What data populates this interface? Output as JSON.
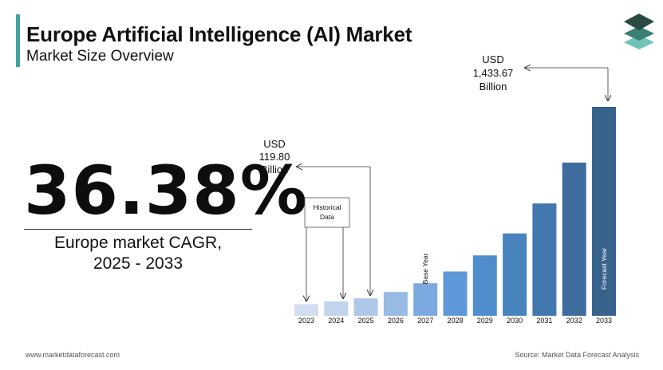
{
  "header": {
    "title": "Europe Artificial Intelligence (AI) Market",
    "subtitle": "Market Size Overview"
  },
  "colors": {
    "accent": "#3fa59b",
    "logo_dark": "#2c4a44",
    "logo_mid": "#3a7f73",
    "logo_light": "#6fc3b7"
  },
  "logo": {
    "icon": "stacked-layers-logo-icon"
  },
  "cagr": {
    "value": "36.38%",
    "label_line1": "Europe market CAGR,",
    "label_line2": "2025 - 2033"
  },
  "chart_data": {
    "type": "bar",
    "categories": [
      "2023",
      "2024",
      "2025",
      "2026",
      "2027",
      "2028",
      "2029",
      "2030",
      "2031",
      "2032",
      "2033"
    ],
    "values": [
      79.5,
      98.5,
      119.8,
      163.4,
      222.8,
      303.9,
      414.4,
      565.2,
      770.8,
      1051.2,
      1433.67
    ],
    "bar_colors": [
      "#d1ddf0",
      "#c2d4ec",
      "#afc8e8",
      "#98bbe5",
      "#7ba8de",
      "#5f98d8",
      "#4f8dcc",
      "#4a84be",
      "#4378ae",
      "#3e6d9d",
      "#37628c"
    ],
    "bar_labels": {
      "2027": "Base Year",
      "2033": "Forecast Year"
    },
    "ylim": [
      0,
      1433.67
    ],
    "annotations": {
      "historical": {
        "text_line1": "Historical",
        "text_line2": "Data",
        "targets": [
          "2023",
          "2024"
        ]
      },
      "value_2025": {
        "line1": "USD",
        "line2": "119.80",
        "line3": "Billion",
        "target": "2025"
      },
      "value_2033": {
        "line1": "USD",
        "line2": "1,433.67",
        "line3": "Billion",
        "target": "2033"
      }
    }
  },
  "footer": {
    "website": "www.marketdataforecast.com",
    "source": "Source: Market Data Forecast Analysis"
  }
}
